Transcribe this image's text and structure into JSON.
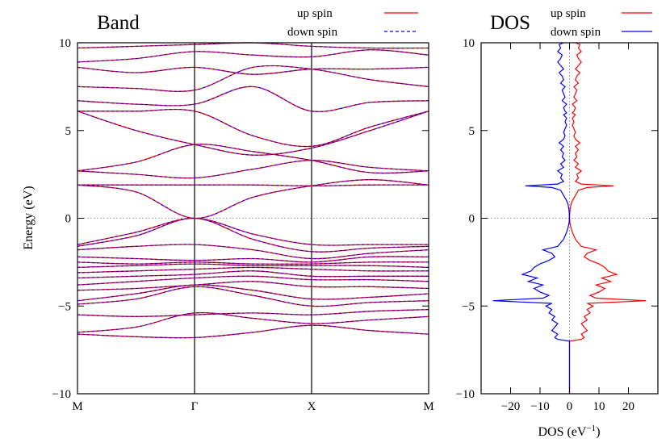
{
  "colors": {
    "up": "#ff0000",
    "down": "#0000ff",
    "frame": "#000000",
    "fermi": "#999999"
  },
  "chart_data": [
    {
      "type": "line",
      "panel": "band",
      "title": "Band",
      "ylabel": "Energy (eV)",
      "xlabel": "",
      "ylim": [
        -10,
        10
      ],
      "yticks": [
        -10,
        -5,
        0,
        5,
        10
      ],
      "ytick_labels": [
        "−10",
        "−5",
        "0",
        "5",
        "10"
      ],
      "kpoints": [
        {
          "label": "M",
          "x": 0
        },
        {
          "label": "Γ",
          "x": 1
        },
        {
          "label": "X",
          "x": 2
        },
        {
          "label": "M",
          "x": 3
        }
      ],
      "legend": [
        {
          "label": "up spin",
          "style": "solid",
          "color": "#ff0000"
        },
        {
          "label": "down spin",
          "style": "dashed",
          "color": "#0000ff"
        }
      ],
      "fermi_level": 0,
      "series": [
        {
          "x": [
            0,
            0.5,
            1,
            1.5,
            2,
            2.5,
            3
          ],
          "values": [
            -6.6,
            -6.75,
            -6.8,
            -6.5,
            -6.1,
            -6.4,
            -6.6
          ]
        },
        {
          "x": [
            0,
            0.5,
            1,
            1.5,
            2,
            2.5,
            3
          ],
          "values": [
            -6.5,
            -6.2,
            -5.4,
            -5.7,
            -6.0,
            -5.8,
            -5.6
          ]
        },
        {
          "x": [
            0,
            0.5,
            1,
            1.5,
            2,
            2.5,
            3
          ],
          "values": [
            -5.5,
            -5.6,
            -5.5,
            -5.4,
            -5.5,
            -5.3,
            -5.2
          ]
        },
        {
          "x": [
            0,
            0.5,
            1,
            1.5,
            2,
            2.5,
            3
          ],
          "values": [
            -4.9,
            -4.6,
            -3.9,
            -4.4,
            -5.0,
            -4.8,
            -4.7
          ]
        },
        {
          "x": [
            0,
            0.5,
            1,
            1.5,
            2,
            2.5,
            3
          ],
          "values": [
            -4.7,
            -4.3,
            -3.8,
            -4.1,
            -4.6,
            -4.5,
            -4.3
          ]
        },
        {
          "x": [
            0,
            0.5,
            1,
            1.5,
            2,
            2.5,
            3
          ],
          "values": [
            -4.1,
            -4.0,
            -3.8,
            -3.6,
            -3.9,
            -3.9,
            -4.0
          ]
        },
        {
          "x": [
            0,
            0.5,
            1,
            1.5,
            2,
            2.5,
            3
          ],
          "values": [
            -3.8,
            -3.6,
            -3.4,
            -3.3,
            -3.5,
            -3.5,
            -3.6
          ]
        },
        {
          "x": [
            0,
            0.5,
            1,
            1.5,
            2,
            2.5,
            3
          ],
          "values": [
            -3.4,
            -3.3,
            -3.2,
            -3.0,
            -3.3,
            -3.3,
            -3.3
          ]
        },
        {
          "x": [
            0,
            0.5,
            1,
            1.5,
            2,
            2.5,
            3
          ],
          "values": [
            -3.1,
            -3.0,
            -2.9,
            -2.8,
            -2.9,
            -3.0,
            -3.0
          ]
        },
        {
          "x": [
            0,
            0.5,
            1,
            1.5,
            2,
            2.5,
            3
          ],
          "values": [
            -2.8,
            -2.7,
            -2.6,
            -2.7,
            -2.7,
            -2.7,
            -2.8
          ]
        },
        {
          "x": [
            0,
            0.5,
            1,
            1.5,
            2,
            2.5,
            3
          ],
          "values": [
            -2.5,
            -2.6,
            -2.5,
            -2.6,
            -2.6,
            -2.5,
            -2.5
          ]
        },
        {
          "x": [
            0,
            0.5,
            1,
            1.5,
            2,
            2.5,
            3
          ],
          "values": [
            -2.2,
            -2.3,
            -2.4,
            -2.3,
            -2.5,
            -2.2,
            -2.2
          ]
        },
        {
          "x": [
            0,
            0.5,
            1,
            1.5,
            2,
            2.5,
            3
          ],
          "values": [
            -1.8,
            -1.6,
            -1.5,
            -1.8,
            -2.3,
            -2.0,
            -1.8
          ]
        },
        {
          "x": [
            0,
            0.5,
            1,
            1.5,
            2,
            2.5,
            3
          ],
          "values": [
            -1.6,
            -1.0,
            0.0,
            -1.2,
            -1.9,
            -1.7,
            -1.6
          ]
        },
        {
          "x": [
            0,
            0.5,
            1,
            1.5,
            2,
            2.5,
            3
          ],
          "values": [
            -1.5,
            -0.8,
            0.0,
            -0.9,
            -1.5,
            -1.5,
            -1.5
          ]
        },
        {
          "x": [
            0,
            0.5,
            1,
            1.5,
            2,
            2.5,
            3
          ],
          "values": [
            1.9,
            1.9,
            1.9,
            1.9,
            1.85,
            1.9,
            1.9
          ]
        },
        {
          "x": [
            0,
            0.5,
            1,
            1.5,
            2,
            2.5,
            3
          ],
          "values": [
            1.9,
            1.5,
            0.0,
            1.2,
            1.85,
            2.2,
            1.9
          ]
        },
        {
          "x": [
            0,
            0.5,
            1,
            1.5,
            2,
            2.5,
            3
          ],
          "values": [
            2.7,
            2.5,
            2.3,
            2.8,
            3.3,
            2.9,
            2.7
          ]
        },
        {
          "x": [
            0,
            0.5,
            1,
            1.5,
            2,
            2.5,
            3
          ],
          "values": [
            2.7,
            3.2,
            4.2,
            3.8,
            3.3,
            2.6,
            2.7
          ]
        },
        {
          "x": [
            0,
            0.5,
            1,
            1.5,
            2,
            2.5,
            3
          ],
          "values": [
            6.1,
            5.0,
            4.2,
            3.6,
            4.0,
            5.0,
            6.1
          ]
        },
        {
          "x": [
            0,
            0.5,
            1,
            1.5,
            2,
            2.5,
            3
          ],
          "values": [
            6.1,
            6.1,
            6.1,
            4.7,
            4.1,
            5.2,
            6.1
          ]
        },
        {
          "x": [
            0,
            0.5,
            1,
            1.5,
            2,
            2.5,
            3
          ],
          "values": [
            6.7,
            6.5,
            6.5,
            7.5,
            6.1,
            6.6,
            6.7
          ]
        },
        {
          "x": [
            0,
            0.5,
            1,
            1.5,
            2,
            2.5,
            3
          ],
          "values": [
            7.5,
            7.4,
            7.3,
            8.6,
            8.5,
            7.9,
            7.5
          ]
        },
        {
          "x": [
            0,
            0.5,
            1,
            1.5,
            2,
            2.5,
            3
          ],
          "values": [
            8.6,
            8.3,
            8.6,
            8.2,
            8.5,
            8.5,
            8.6
          ]
        },
        {
          "x": [
            0,
            0.5,
            1,
            1.5,
            2,
            2.5,
            3
          ],
          "values": [
            8.9,
            9.1,
            9.5,
            9.3,
            9.2,
            9.6,
            9.3
          ]
        },
        {
          "x": [
            0,
            0.5,
            1,
            1.5,
            2,
            2.5,
            3
          ],
          "values": [
            9.7,
            9.8,
            9.9,
            10.0,
            9.8,
            9.7,
            9.7
          ]
        }
      ]
    },
    {
      "type": "line",
      "panel": "dos",
      "title": "DOS",
      "xlabel_base": "DOS (eV",
      "xlabel_sup": "−1",
      "xlabel_end": ")",
      "ylabel": "",
      "xlim": [
        -30,
        30
      ],
      "ylim": [
        -10,
        10
      ],
      "xticks": [
        -20,
        -10,
        0,
        10,
        20
      ],
      "xtick_labels": [
        "−20",
        "−10",
        "0",
        "10",
        "20"
      ],
      "yticks": [
        -10,
        -5,
        0,
        5,
        10
      ],
      "ytick_labels": [
        "−10",
        "−5",
        "0",
        "5",
        "10"
      ],
      "legend": [
        {
          "label": "up spin",
          "color": "#ff0000"
        },
        {
          "label": "down spin",
          "color": "#0000ff"
        }
      ],
      "fermi_level": 0,
      "energy": [
        -10,
        -7.0,
        -6.9,
        -6.8,
        -6.6,
        -6.4,
        -6.2,
        -6.0,
        -5.8,
        -5.6,
        -5.4,
        -5.2,
        -5.0,
        -4.85,
        -4.7,
        -4.55,
        -4.4,
        -4.2,
        -4.0,
        -3.8,
        -3.6,
        -3.4,
        -3.2,
        -3.0,
        -2.8,
        -2.6,
        -2.4,
        -2.2,
        -2.0,
        -1.8,
        -1.6,
        -1.4,
        -1.2,
        -1.0,
        -0.8,
        -0.6,
        -0.4,
        -0.2,
        0.0,
        0.2,
        0.5,
        0.8,
        1.0,
        1.3,
        1.6,
        1.75,
        1.85,
        1.95,
        2.1,
        2.3,
        2.5,
        2.7,
        2.9,
        3.1,
        3.3,
        3.5,
        3.7,
        3.9,
        4.1,
        4.3,
        4.5,
        4.7,
        4.9,
        5.1,
        5.3,
        5.5,
        5.7,
        5.9,
        6.0,
        6.1,
        6.3,
        6.5,
        6.7,
        6.9,
        7.1,
        7.3,
        7.5,
        7.7,
        7.9,
        8.1,
        8.3,
        8.5,
        8.7,
        8.9,
        9.1,
        9.3,
        9.5,
        9.7,
        9.9,
        10.0
      ],
      "dos_up": [
        0,
        0,
        4,
        5,
        4,
        6,
        5,
        4,
        6,
        5,
        7,
        6,
        8,
        6,
        26,
        9,
        7,
        10,
        12,
        9,
        14,
        11,
        16,
        13,
        12,
        10,
        7,
        5,
        6,
        9,
        4,
        3,
        2,
        1.5,
        1,
        0.6,
        0.3,
        0.1,
        0.05,
        0.05,
        0.2,
        0.5,
        1,
        2,
        3,
        6,
        15,
        4,
        2,
        3,
        2.5,
        4,
        2,
        3,
        1.5,
        2.5,
        2,
        3,
        2,
        3.5,
        2,
        1.5,
        2,
        1.5,
        1,
        1.5,
        1,
        2,
        1,
        1.5,
        2,
        1,
        2.5,
        1.5,
        2,
        2.5,
        1.5,
        3,
        2,
        2.5,
        3.5,
        2,
        3,
        4,
        3,
        2.5,
        4,
        3,
        3.5,
        2
      ],
      "dos_down": [
        0,
        0,
        4,
        5,
        4,
        6,
        5,
        4,
        6,
        5,
        7,
        6,
        8,
        6,
        26,
        9,
        7,
        10,
        12,
        9,
        14,
        11,
        16,
        13,
        12,
        10,
        7,
        5,
        6,
        9,
        4,
        3,
        2,
        1.5,
        1,
        0.6,
        0.3,
        0.1,
        0.05,
        0.05,
        0.2,
        0.5,
        1,
        2,
        3,
        6,
        15,
        4,
        2,
        3,
        2.5,
        4,
        2,
        3,
        1.5,
        2.5,
        2,
        3,
        2,
        3.5,
        2,
        1.5,
        2,
        1.5,
        1,
        1.5,
        1,
        2,
        1,
        1.5,
        2,
        1,
        2.5,
        1.5,
        2,
        2.5,
        1.5,
        3,
        2,
        2.5,
        3.5,
        2,
        3,
        4,
        3,
        2.5,
        4,
        3,
        3.5,
        2
      ]
    }
  ]
}
